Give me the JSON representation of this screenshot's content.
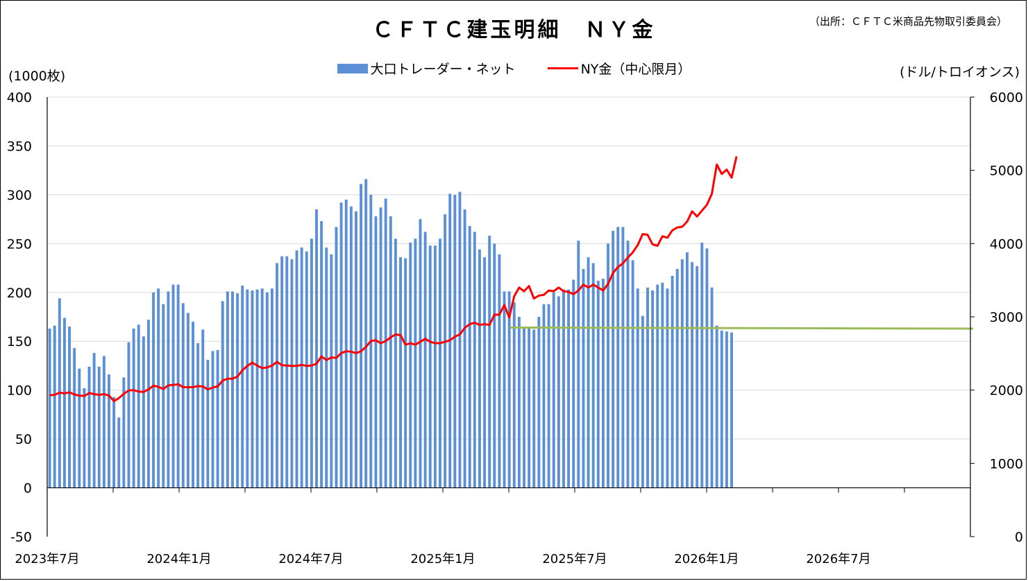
{
  "title": "ＣＦＴＣ建玉明細　ＮＹ金",
  "source": "（出所：ＣＦＴＣ米商品先物取引委員会）",
  "left_unit": "(1000枚)",
  "right_unit": "(ドル/トロイオンス)",
  "legend": {
    "bar_label": "大口トレーダー・ネット",
    "line_label": "NY金（中心限月）"
  },
  "colors": {
    "bar": "#5b8fd6",
    "line": "#ff0000",
    "ref_line": "#9bbb59",
    "grid": "#d9d9d9"
  },
  "chart_data": {
    "type": "bar",
    "title": "ＣＦＴＣ建玉明細　ＮＹ金",
    "x_tick_labels": [
      "2023年7月",
      "2024年1月",
      "2024年7月",
      "2025年1月",
      "2025年7月",
      "2026年1月",
      "2026年7月"
    ],
    "x_range_months": [
      "2023-07",
      "2026-12"
    ],
    "left_axis": {
      "label": "(1000枚)",
      "min": -50,
      "max": 400,
      "ticks": [
        -50,
        0,
        50,
        100,
        150,
        200,
        250,
        300,
        350,
        400
      ]
    },
    "right_axis": {
      "label": "(ドル/トロイオンス)",
      "min": 0,
      "max": 6000,
      "ticks": [
        0,
        1000,
        2000,
        3000,
        4000,
        5000,
        6000
      ]
    },
    "grid": true,
    "legend_position": "top-center",
    "series": [
      {
        "name": "大口トレーダー・ネット",
        "type": "bar",
        "axis": "left",
        "values": [
          163,
          166,
          194,
          174,
          165,
          143,
          122,
          102,
          124,
          138,
          124,
          135,
          116,
          93,
          72,
          113,
          149,
          163,
          167,
          155,
          172,
          200,
          204,
          188,
          201,
          208,
          208,
          189,
          179,
          170,
          148,
          162,
          131,
          140,
          141,
          191,
          201,
          201,
          199,
          207,
          203,
          202,
          203,
          204,
          200,
          204,
          230,
          237,
          237,
          234,
          243,
          246,
          242,
          255,
          285,
          273,
          246,
          239,
          267,
          292,
          295,
          288,
          283,
          311,
          316,
          300,
          278,
          287,
          296,
          278,
          255,
          236,
          235,
          251,
          255,
          275,
          262,
          248,
          248,
          255,
          280,
          301,
          300,
          303,
          285,
          268,
          262,
          244,
          236,
          258,
          250,
          239,
          201,
          201,
          190,
          175,
          165,
          163,
          162,
          175,
          188,
          188,
          200,
          196,
          203,
          203,
          213,
          253,
          224,
          236,
          230,
          212,
          214,
          250,
          263,
          267,
          267,
          253,
          233,
          204,
          176,
          205,
          202,
          208,
          210,
          204,
          217,
          224,
          234,
          241,
          231,
          227,
          251,
          245,
          205,
          166,
          161,
          160,
          159
        ]
      },
      {
        "name": "NY金（中心限月）",
        "type": "line",
        "axis": "right",
        "values": [
          1930,
          1935,
          1965,
          1955,
          1970,
          1940,
          1925,
          1920,
          1960,
          1945,
          1935,
          1945,
          1925,
          1850,
          1890,
          1950,
          1995,
          2000,
          1980,
          1975,
          2010,
          2060,
          2045,
          2015,
          2065,
          2070,
          2080,
          2040,
          2040,
          2040,
          2055,
          2050,
          2010,
          2035,
          2050,
          2130,
          2155,
          2155,
          2185,
          2270,
          2330,
          2375,
          2335,
          2300,
          2310,
          2335,
          2385,
          2340,
          2335,
          2330,
          2330,
          2345,
          2330,
          2335,
          2360,
          2460,
          2410,
          2445,
          2440,
          2505,
          2530,
          2525,
          2505,
          2530,
          2590,
          2670,
          2680,
          2640,
          2670,
          2720,
          2760,
          2750,
          2620,
          2640,
          2620,
          2660,
          2700,
          2660,
          2640,
          2640,
          2660,
          2680,
          2730,
          2760,
          2850,
          2900,
          2920,
          2890,
          2900,
          2890,
          3030,
          3030,
          3160,
          2990,
          3280,
          3400,
          3350,
          3420,
          3250,
          3290,
          3300,
          3360,
          3350,
          3400,
          3350,
          3340,
          3310,
          3360,
          3440,
          3400,
          3440,
          3400,
          3360,
          3450,
          3600,
          3680,
          3730,
          3810,
          3880,
          3980,
          4130,
          4120,
          3990,
          3970,
          4100,
          4080,
          4180,
          4220,
          4230,
          4300,
          4440,
          4370,
          4450,
          4530,
          4680,
          5080,
          4950,
          5010,
          4900,
          5190
        ]
      },
      {
        "name": "",
        "type": "reference_line",
        "axis": "left",
        "start": "2025-04",
        "end": "2026-12",
        "value": 164
      }
    ]
  }
}
